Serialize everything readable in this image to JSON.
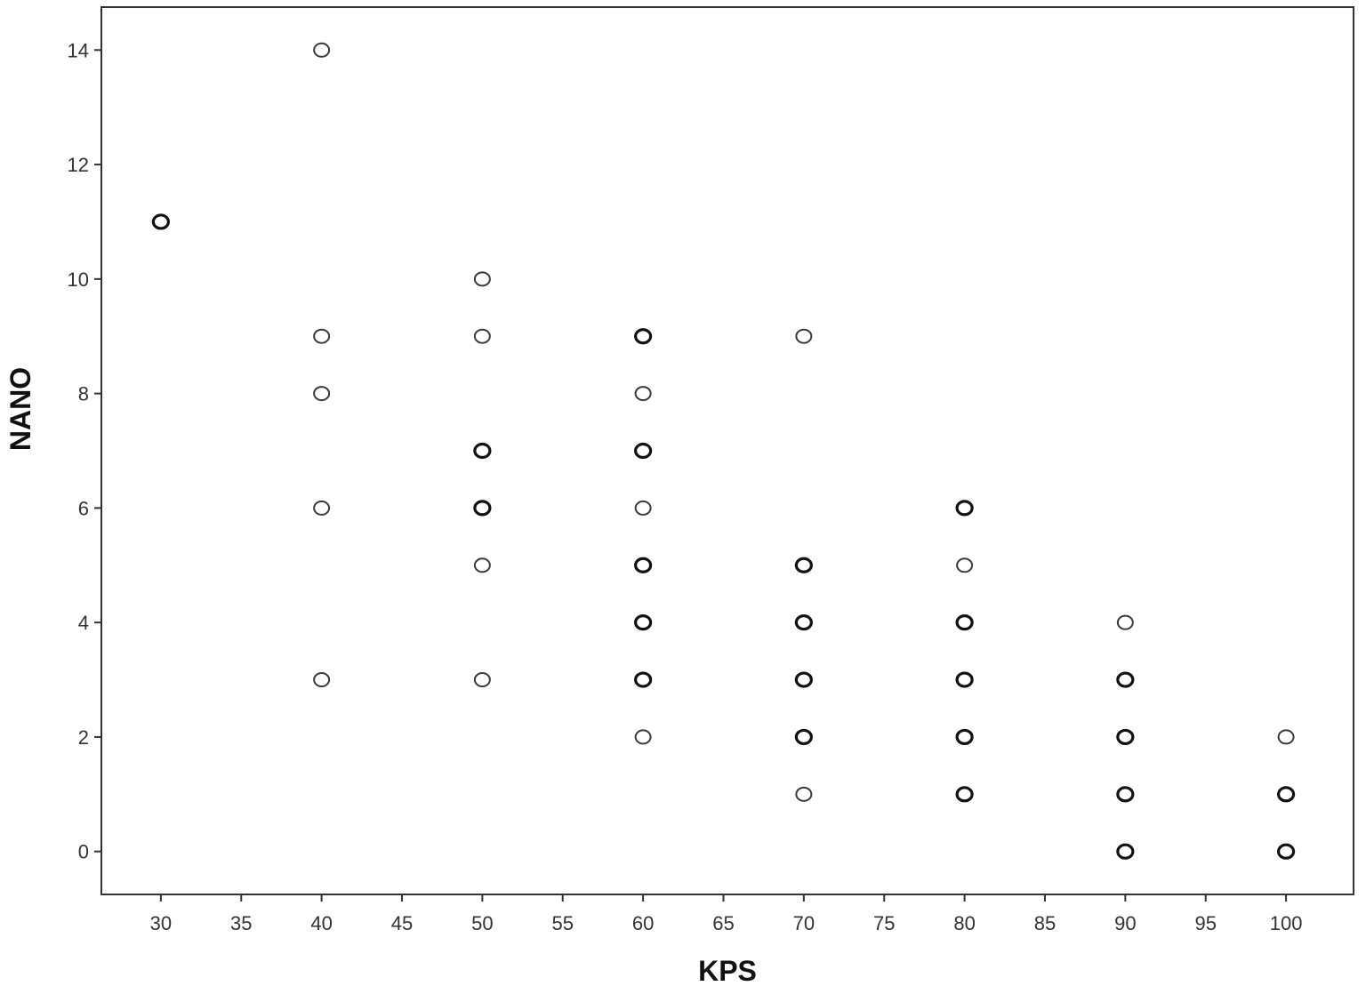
{
  "chart_data": {
    "type": "scatter",
    "title": "",
    "xlabel": "KPS",
    "ylabel": "NANO",
    "xlim": [
      26.3,
      104.2
    ],
    "ylim": [
      -0.75,
      14.75
    ],
    "xticks": [
      30,
      35,
      40,
      45,
      50,
      55,
      60,
      65,
      70,
      75,
      80,
      85,
      90,
      95,
      100
    ],
    "yticks": [
      0,
      2,
      4,
      6,
      8,
      10,
      12,
      14
    ],
    "xtick_labels": [
      "30",
      "35",
      "40",
      "45",
      "50",
      "55",
      "60",
      "65",
      "70",
      "75",
      "80",
      "85",
      "90",
      "95",
      "100"
    ],
    "ytick_labels": [
      "0",
      "2",
      "4",
      "6",
      "8",
      "10",
      "12",
      "14"
    ],
    "grid": false,
    "marker": "hollow-circle",
    "points": [
      {
        "x": 30,
        "y": 11,
        "overlap": true
      },
      {
        "x": 40,
        "y": 14
      },
      {
        "x": 40,
        "y": 9
      },
      {
        "x": 40,
        "y": 8
      },
      {
        "x": 40,
        "y": 6
      },
      {
        "x": 40,
        "y": 3
      },
      {
        "x": 50,
        "y": 10
      },
      {
        "x": 50,
        "y": 9
      },
      {
        "x": 50,
        "y": 7,
        "overlap": true
      },
      {
        "x": 50,
        "y": 6,
        "overlap": true
      },
      {
        "x": 50,
        "y": 5
      },
      {
        "x": 50,
        "y": 3
      },
      {
        "x": 60,
        "y": 9,
        "overlap": true
      },
      {
        "x": 60,
        "y": 8
      },
      {
        "x": 60,
        "y": 7,
        "overlap": true
      },
      {
        "x": 60,
        "y": 6
      },
      {
        "x": 60,
        "y": 5,
        "overlap": true
      },
      {
        "x": 60,
        "y": 4,
        "overlap": true
      },
      {
        "x": 60,
        "y": 3,
        "overlap": true
      },
      {
        "x": 60,
        "y": 2
      },
      {
        "x": 70,
        "y": 9
      },
      {
        "x": 70,
        "y": 5,
        "overlap": true
      },
      {
        "x": 70,
        "y": 4,
        "overlap": true
      },
      {
        "x": 70,
        "y": 3,
        "overlap": true
      },
      {
        "x": 70,
        "y": 2,
        "overlap": true
      },
      {
        "x": 70,
        "y": 1
      },
      {
        "x": 80,
        "y": 6,
        "overlap": true
      },
      {
        "x": 80,
        "y": 5
      },
      {
        "x": 80,
        "y": 4,
        "overlap": true
      },
      {
        "x": 80,
        "y": 3,
        "overlap": true
      },
      {
        "x": 80,
        "y": 2,
        "overlap": true
      },
      {
        "x": 80,
        "y": 1,
        "overlap": true
      },
      {
        "x": 90,
        "y": 4
      },
      {
        "x": 90,
        "y": 3,
        "overlap": true
      },
      {
        "x": 90,
        "y": 2,
        "overlap": true
      },
      {
        "x": 90,
        "y": 1,
        "overlap": true
      },
      {
        "x": 90,
        "y": 0,
        "overlap": true
      },
      {
        "x": 100,
        "y": 2
      },
      {
        "x": 100,
        "y": 1,
        "overlap": true
      },
      {
        "x": 100,
        "y": 0,
        "overlap": true
      }
    ],
    "colors": {
      "marker": "#3a3a3a",
      "marker_dense": "#111111",
      "axis": "#333333",
      "background": "#ffffff"
    }
  }
}
